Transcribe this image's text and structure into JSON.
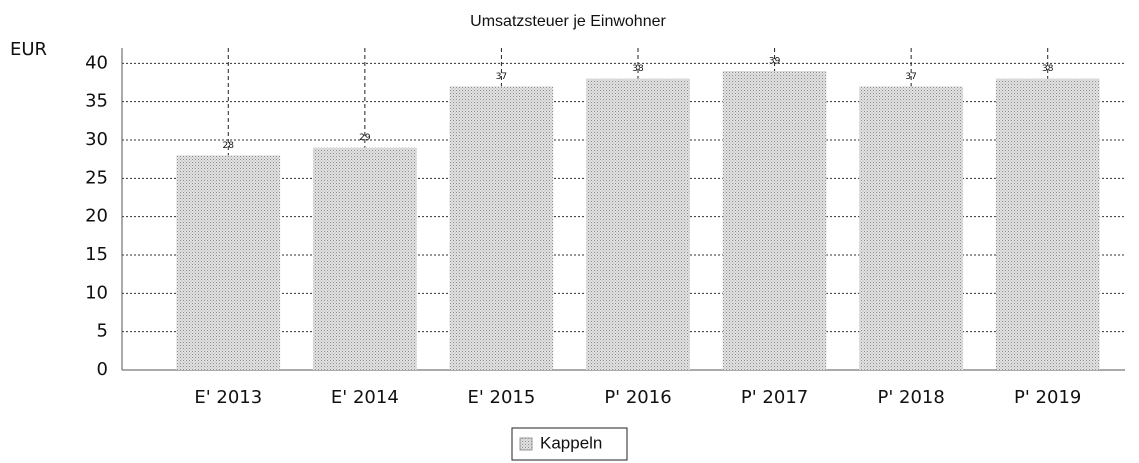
{
  "chart_data": {
    "type": "bar",
    "title": "Umsatzsteuer je Einwohner",
    "y_label": "EUR",
    "categories": [
      "E' 2013",
      "E' 2014",
      "E' 2015",
      "P' 2016",
      "P' 2017",
      "P' 2018",
      "P' 2019"
    ],
    "series": [
      {
        "name": "Kappeln",
        "color": "#d4d4d4",
        "values": [
          28,
          29,
          37,
          38,
          39,
          37,
          38
        ]
      }
    ],
    "ylim": [
      0,
      42
    ],
    "yticks": [
      0,
      5,
      10,
      15,
      20,
      25,
      30,
      35,
      40
    ],
    "grid": true,
    "legend": "bottom"
  }
}
